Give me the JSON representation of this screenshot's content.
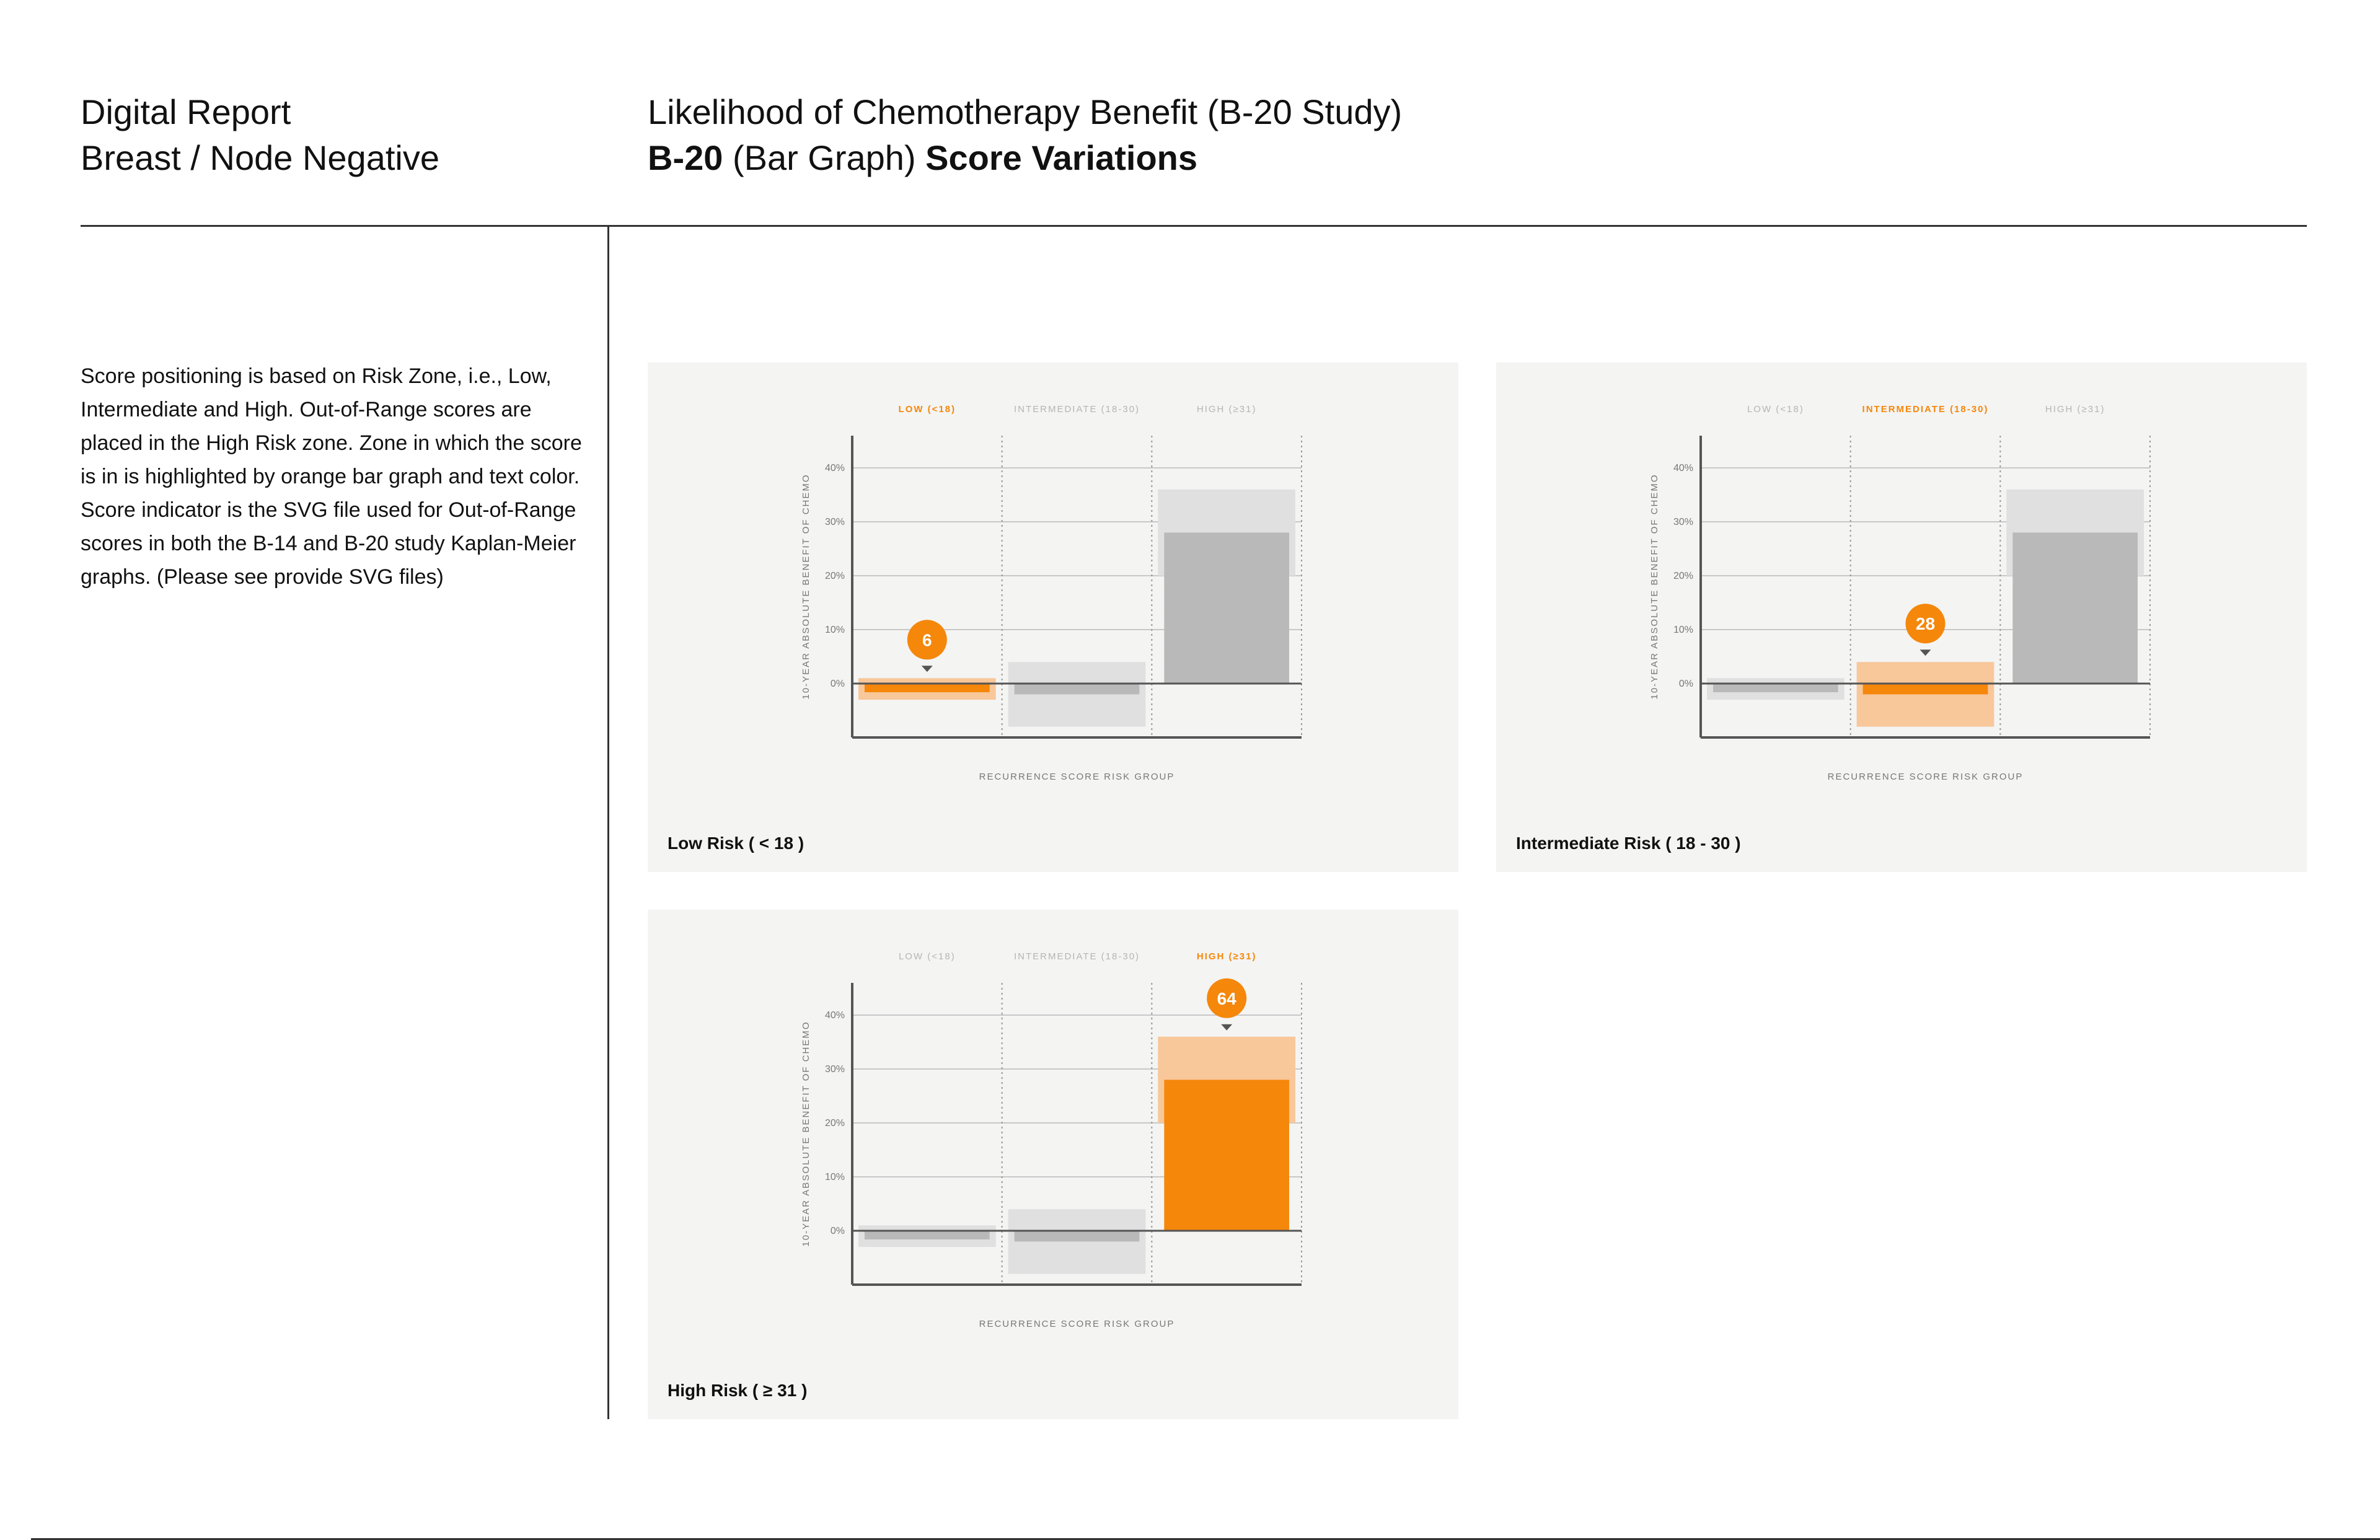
{
  "header": {
    "left_line1": "Digital Report",
    "left_line2": "Breast / Node Negative",
    "right_line1": "Likelihood of Chemotherapy Benefit (B-20 Study)",
    "right_line2_bold1": "B-20",
    "right_line2_normal": " (Bar Graph) ",
    "right_line2_bold2": "Score Variations"
  },
  "description": "Score positioning is based on Risk Zone, i.e., Low, Intermediate and High. Out-of-Range scores are placed in the High Risk zone. Zone in which the score is in is highlighted by orange bar graph and text color. Score indicator is the SVG file used for Out-of-Range scores in both the B-14 and B-20 study Kaplan-Meier graphs. (Please see provide SVG files)",
  "colors": {
    "highlight": "#f5870a",
    "highlight_light": "#f8c79a",
    "bar_dark": "#b9b9b9",
    "bar_light": "#e0e0e0",
    "axis": "#555555"
  },
  "chart_data": [
    {
      "type": "bar",
      "title": "Low Risk ( < 18 )",
      "categories": [
        "LOW (<18)",
        "INTERMEDIATE (18-30)",
        "HIGH (≥31)"
      ],
      "highlight_index": 0,
      "score": "6",
      "values": [
        -1,
        -2,
        28
      ],
      "ci_lower": [
        -3,
        -8,
        20
      ],
      "ci_upper": [
        1,
        4,
        36
      ],
      "ylabel": "10-YEAR ABSOLUTE BENEFIT OF CHEMO",
      "xlabel": "RECURRENCE SCORE RISK GROUP",
      "yticks": [
        "40%",
        "30%",
        "20%",
        "10%",
        "0%"
      ],
      "ylim": [
        -10,
        45
      ]
    },
    {
      "type": "bar",
      "title": "Intermediate Risk ( 18 - 30 )",
      "categories": [
        "LOW (<18)",
        "INTERMEDIATE (18-30)",
        "HIGH (≥31)"
      ],
      "highlight_index": 1,
      "score": "28",
      "values": [
        -1,
        -2,
        28
      ],
      "ci_lower": [
        -3,
        -8,
        20
      ],
      "ci_upper": [
        1,
        4,
        36
      ],
      "ylabel": "10-YEAR ABSOLUTE BENEFIT OF CHEMO",
      "xlabel": "RECURRENCE SCORE RISK GROUP",
      "yticks": [
        "40%",
        "30%",
        "20%",
        "10%",
        "0%"
      ],
      "ylim": [
        -10,
        45
      ]
    },
    {
      "type": "bar",
      "title": "High Risk ( ≥ 31 )",
      "categories": [
        "LOW (<18)",
        "INTERMEDIATE (18-30)",
        "HIGH (≥31)"
      ],
      "highlight_index": 2,
      "score": "64",
      "values": [
        -1,
        -2,
        28
      ],
      "ci_lower": [
        -3,
        -8,
        20
      ],
      "ci_upper": [
        1,
        4,
        36
      ],
      "ylabel": "10-YEAR ABSOLUTE BENEFIT OF CHEMO",
      "xlabel": "RECURRENCE SCORE RISK GROUP",
      "yticks": [
        "40%",
        "30%",
        "20%",
        "10%",
        "0%"
      ],
      "ylim": [
        -10,
        45
      ]
    }
  ]
}
